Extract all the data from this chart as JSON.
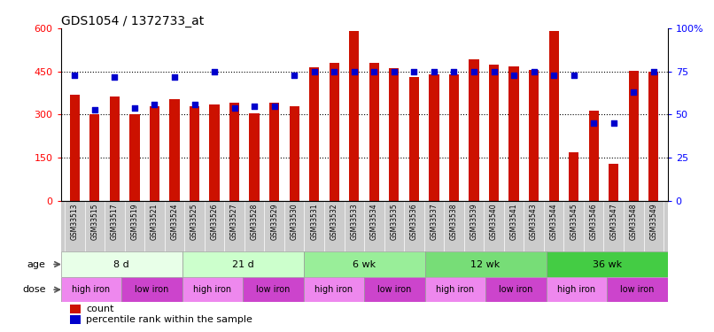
{
  "title": "GDS1054 / 1372733_at",
  "samples": [
    "GSM33513",
    "GSM33515",
    "GSM33517",
    "GSM33519",
    "GSM33521",
    "GSM33524",
    "GSM33525",
    "GSM33526",
    "GSM33527",
    "GSM33528",
    "GSM33529",
    "GSM33530",
    "GSM33531",
    "GSM33532",
    "GSM33533",
    "GSM33534",
    "GSM33535",
    "GSM33536",
    "GSM33537",
    "GSM33538",
    "GSM33539",
    "GSM33540",
    "GSM33541",
    "GSM33543",
    "GSM33544",
    "GSM33545",
    "GSM33546",
    "GSM33547",
    "GSM33548",
    "GSM33549"
  ],
  "counts": [
    370,
    302,
    362,
    302,
    330,
    355,
    330,
    335,
    340,
    305,
    340,
    330,
    465,
    480,
    590,
    480,
    462,
    432,
    440,
    440,
    492,
    475,
    466,
    456,
    590,
    170,
    315,
    130,
    452,
    450
  ],
  "percentile_ranks": [
    73,
    53,
    72,
    54,
    56,
    72,
    56,
    75,
    54,
    55,
    55,
    73,
    75,
    75,
    75,
    75,
    75,
    75,
    75,
    75,
    75,
    75,
    73,
    75,
    73,
    73,
    45,
    45,
    63,
    75
  ],
  "bar_color": "#cc1100",
  "dot_color": "#0000cc",
  "left_ylim": [
    0,
    600
  ],
  "right_ylim": [
    0,
    100
  ],
  "left_yticks": [
    0,
    150,
    300,
    450,
    600
  ],
  "right_yticks": [
    0,
    25,
    50,
    75,
    100
  ],
  "right_yticklabels": [
    "0",
    "25",
    "50",
    "75",
    "100%"
  ],
  "age_groups": [
    {
      "label": "8 d",
      "start": 0,
      "end": 6,
      "color": "#e8ffe8"
    },
    {
      "label": "21 d",
      "start": 6,
      "end": 12,
      "color": "#ccffcc"
    },
    {
      "label": "6 wk",
      "start": 12,
      "end": 18,
      "color": "#99ee99"
    },
    {
      "label": "12 wk",
      "start": 18,
      "end": 24,
      "color": "#77dd77"
    },
    {
      "label": "36 wk",
      "start": 24,
      "end": 30,
      "color": "#44cc44"
    }
  ],
  "dose_groups": [
    {
      "label": "high iron",
      "start": 0,
      "end": 3,
      "color": "#ee88ee"
    },
    {
      "label": "low iron",
      "start": 3,
      "end": 6,
      "color": "#cc44cc"
    },
    {
      "label": "high iron",
      "start": 6,
      "end": 9,
      "color": "#ee88ee"
    },
    {
      "label": "low iron",
      "start": 9,
      "end": 12,
      "color": "#cc44cc"
    },
    {
      "label": "high iron",
      "start": 12,
      "end": 15,
      "color": "#ee88ee"
    },
    {
      "label": "low iron",
      "start": 15,
      "end": 18,
      "color": "#cc44cc"
    },
    {
      "label": "high iron",
      "start": 18,
      "end": 21,
      "color": "#ee88ee"
    },
    {
      "label": "low iron",
      "start": 21,
      "end": 24,
      "color": "#cc44cc"
    },
    {
      "label": "high iron",
      "start": 24,
      "end": 27,
      "color": "#ee88ee"
    },
    {
      "label": "low iron",
      "start": 27,
      "end": 30,
      "color": "#cc44cc"
    }
  ],
  "legend_count_label": "count",
  "legend_pct_label": "percentile rank within the sample",
  "age_label": "age",
  "dose_label": "dose",
  "grid_lines": [
    150,
    300,
    450
  ],
  "bar_width": 0.5,
  "tick_bg_color": "#cccccc"
}
